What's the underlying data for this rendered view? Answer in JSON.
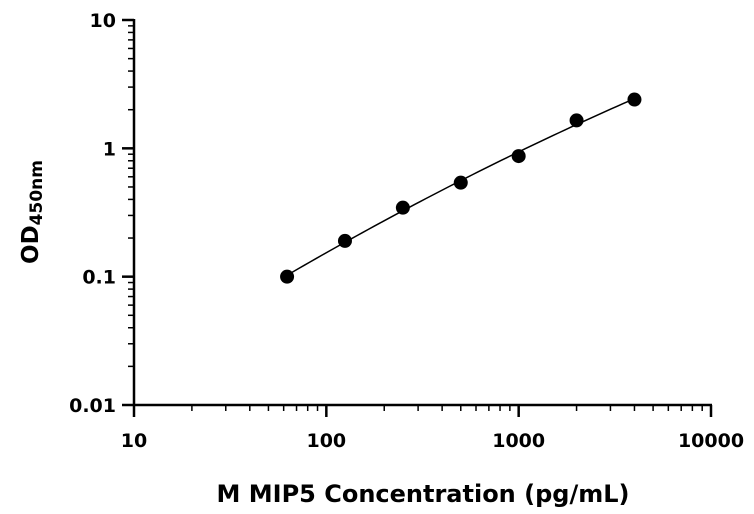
{
  "chart_data": {
    "type": "scatter",
    "title": "",
    "xlabel": "M MIP5 Concentration (pg/mL)",
    "ylabel": {
      "main": "OD",
      "subscript": "450nm"
    },
    "x_scale": "log",
    "y_scale": "log",
    "xlim": [
      10,
      10000
    ],
    "ylim": [
      0.01,
      10
    ],
    "x_ticks": [
      {
        "value": 10,
        "label": "10"
      },
      {
        "value": 100,
        "label": "100"
      },
      {
        "value": 1000,
        "label": "1000"
      },
      {
        "value": 10000,
        "label": "10000"
      }
    ],
    "y_ticks": [
      {
        "value": 0.01,
        "label": "0.01"
      },
      {
        "value": 0.1,
        "label": "0.1"
      },
      {
        "value": 1,
        "label": "1"
      },
      {
        "value": 10,
        "label": "10"
      }
    ],
    "series": [
      {
        "x": [
          62.5,
          125,
          250,
          500,
          1000,
          2000,
          4000
        ],
        "y": [
          0.1,
          0.19,
          0.345,
          0.54,
          0.87,
          1.65,
          2.4
        ],
        "marker": "circle",
        "fit_line": true
      }
    ],
    "grid": false,
    "colors": {
      "points": "#000000",
      "line": "#000000",
      "axes": "#000000"
    }
  }
}
